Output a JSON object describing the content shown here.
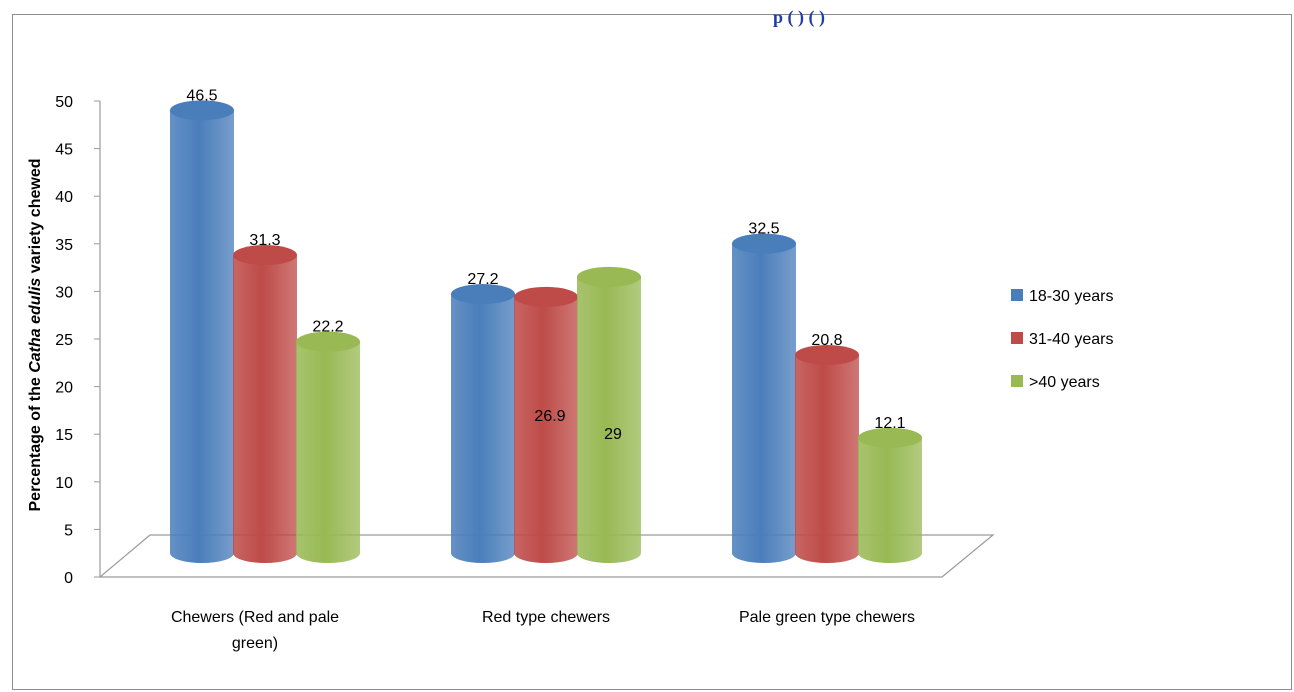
{
  "header": {
    "title_fragment": "p        (     )   ( )"
  },
  "chart_data": {
    "type": "bar",
    "title": "",
    "xlabel": "",
    "ylabel_parts": [
      "Percentage of the ",
      "Catha edulis",
      " variety chewed"
    ],
    "ylim": [
      0,
      50
    ],
    "yticks": [
      0,
      5,
      10,
      15,
      20,
      25,
      30,
      35,
      40,
      45,
      50
    ],
    "grid": false,
    "legend_position": "right",
    "categories": [
      [
        "Chewers (Red and pale",
        "green)"
      ],
      [
        "Red type chewers"
      ],
      [
        "Pale green type chewers"
      ]
    ],
    "series": [
      {
        "name": "18-30 years",
        "color": "#4a7ebb",
        "values": [
          46.5,
          27.2,
          32.5
        ],
        "labels": [
          "46.5",
          "27.2",
          "32.5"
        ]
      },
      {
        "name": "31-40 years",
        "color": "#be4b48",
        "values": [
          31.3,
          26.9,
          20.8
        ],
        "labels": [
          "31.3",
          "26.9",
          "20.8"
        ]
      },
      {
        "name": ">40 years",
        "color": "#98b954",
        "values": [
          22.2,
          29,
          12.1
        ],
        "labels": [
          "22.2",
          "29",
          "12.1"
        ]
      }
    ]
  }
}
